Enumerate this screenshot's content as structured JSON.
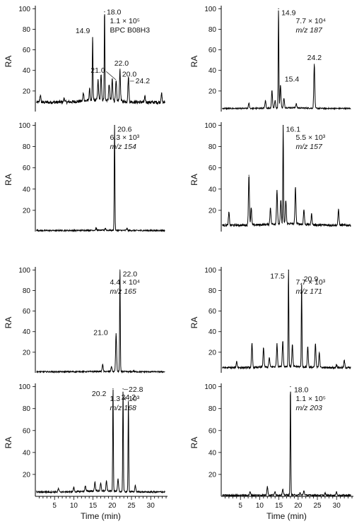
{
  "chart_data": [
    {
      "type": "line",
      "panel": "left-1",
      "annotation": {
        "line1": "1.1 × 10⁵",
        "line2": "BPC B08H3"
      },
      "ylabel": "RA",
      "xlabel": "",
      "ylim": [
        0,
        100
      ],
      "yticks": [
        20,
        40,
        60,
        80,
        100
      ],
      "xlim": [
        0,
        34
      ],
      "baseline": 9,
      "peaks": [
        {
          "x": 1.3,
          "y": 16
        },
        {
          "x": 7.5,
          "y": 13
        },
        {
          "x": 12.5,
          "y": 17
        },
        {
          "x": 14.1,
          "y": 20
        },
        {
          "x": 14.9,
          "y": 72,
          "label": "14.9"
        },
        {
          "x": 16.3,
          "y": 28
        },
        {
          "x": 17.1,
          "y": 35
        },
        {
          "x": 18.0,
          "y": 97,
          "label": "18.0"
        },
        {
          "x": 19.2,
          "y": 25
        },
        {
          "x": 20.0,
          "y": 30,
          "label": "20.0"
        },
        {
          "x": 21.0,
          "y": 28,
          "label": "21.0"
        },
        {
          "x": 22.0,
          "y": 39,
          "label": "22.0"
        },
        {
          "x": 24.2,
          "y": 33,
          "label": "24.2"
        },
        {
          "x": 28.5,
          "y": 14
        },
        {
          "x": 32.8,
          "y": 18
        }
      ]
    },
    {
      "type": "line",
      "panel": "right-1",
      "annotation": {
        "line1": "7.7 × 10⁴",
        "line2": "m/z 187"
      },
      "ylabel": "RA",
      "xlabel": "",
      "ylim": [
        0,
        100
      ],
      "yticks": [
        20,
        40,
        60,
        80,
        100
      ],
      "xlim": [
        0,
        34
      ],
      "baseline": 3,
      "peaks": [
        {
          "x": 7.2,
          "y": 8
        },
        {
          "x": 11.5,
          "y": 10
        },
        {
          "x": 13.2,
          "y": 20
        },
        {
          "x": 14.0,
          "y": 10
        },
        {
          "x": 14.9,
          "y": 100,
          "label": "14.9"
        },
        {
          "x": 15.4,
          "y": 25,
          "label": "15.4"
        },
        {
          "x": 16.3,
          "y": 12
        },
        {
          "x": 19.5,
          "y": 7
        },
        {
          "x": 24.2,
          "y": 46,
          "label": "24.2"
        }
      ]
    },
    {
      "type": "line",
      "panel": "left-2",
      "annotation": {
        "line1": "6.3 × 10³",
        "line2": "m/z 154"
      },
      "ylabel": "RA",
      "xlabel": "",
      "ylim": [
        0,
        100
      ],
      "yticks": [
        20,
        40,
        60,
        80,
        100
      ],
      "xlim": [
        0,
        34
      ],
      "baseline": 1,
      "peaks": [
        {
          "x": 15.8,
          "y": 3
        },
        {
          "x": 18.2,
          "y": 3
        },
        {
          "x": 20.6,
          "y": 100,
          "label": "20.6"
        },
        {
          "x": 23.8,
          "y": 3
        }
      ]
    },
    {
      "type": "line",
      "panel": "right-2",
      "annotation": {
        "line1": "5.5 × 10³",
        "line2": "m/z 157"
      },
      "ylabel": "RA",
      "xlabel": "",
      "ylim": [
        0,
        100
      ],
      "yticks": [
        20,
        40,
        60,
        80,
        100
      ],
      "xlim": [
        0,
        34
      ],
      "baseline": 6,
      "peaks": [
        {
          "x": 2.0,
          "y": 18
        },
        {
          "x": 7.2,
          "y": 53
        },
        {
          "x": 7.8,
          "y": 22
        },
        {
          "x": 12.8,
          "y": 22
        },
        {
          "x": 14.5,
          "y": 38
        },
        {
          "x": 15.5,
          "y": 28
        },
        {
          "x": 16.1,
          "y": 100,
          "label": "16.1"
        },
        {
          "x": 16.8,
          "y": 28
        },
        {
          "x": 19.3,
          "y": 40
        },
        {
          "x": 21.5,
          "y": 20
        },
        {
          "x": 23.5,
          "y": 16
        },
        {
          "x": 30.5,
          "y": 21
        }
      ]
    },
    {
      "type": "line",
      "panel": "left-3",
      "annotation": {
        "line1": "4.4 × 10⁴",
        "line2": "m/z 165"
      },
      "ylabel": "RA",
      "xlabel": "",
      "ylim": [
        0,
        100
      ],
      "yticks": [
        20,
        40,
        60,
        80,
        100
      ],
      "xlim": [
        0,
        34
      ],
      "baseline": 1,
      "peaks": [
        {
          "x": 17.5,
          "y": 8
        },
        {
          "x": 19.8,
          "y": 6
        },
        {
          "x": 21.0,
          "y": 38,
          "label": "21.0"
        },
        {
          "x": 22.0,
          "y": 100,
          "label": "22.0"
        },
        {
          "x": 25.5,
          "y": 2
        }
      ]
    },
    {
      "type": "line",
      "panel": "right-3",
      "annotation": {
        "line1": "7.7 × 10³",
        "line2": "m/z 171"
      },
      "ylabel": "RA",
      "xlabel": "",
      "ylim": [
        0,
        100
      ],
      "yticks": [
        20,
        40,
        60,
        80,
        100
      ],
      "xlim": [
        0,
        34
      ],
      "baseline": 5,
      "peaks": [
        {
          "x": 4.0,
          "y": 11
        },
        {
          "x": 8.0,
          "y": 28
        },
        {
          "x": 11.0,
          "y": 24
        },
        {
          "x": 12.5,
          "y": 14
        },
        {
          "x": 14.5,
          "y": 27
        },
        {
          "x": 16.0,
          "y": 30
        },
        {
          "x": 17.5,
          "y": 100,
          "label": "17.5"
        },
        {
          "x": 18.5,
          "y": 26
        },
        {
          "x": 20.9,
          "y": 87,
          "label": "20.9"
        },
        {
          "x": 22.5,
          "y": 25
        },
        {
          "x": 24.5,
          "y": 28
        },
        {
          "x": 25.5,
          "y": 20
        },
        {
          "x": 30.0,
          "y": 8
        },
        {
          "x": 32.0,
          "y": 12
        }
      ]
    },
    {
      "type": "line",
      "panel": "left-4",
      "annotation": {
        "line1": "1.3 × 10³",
        "line2": "m/z 168"
      },
      "ylabel": "RA",
      "xlabel": "Time (min)",
      "ylim": [
        0,
        100
      ],
      "yticks": [
        20,
        40,
        60,
        80,
        100
      ],
      "xlim": [
        0,
        34
      ],
      "xticks": [
        5,
        10,
        15,
        20,
        25,
        30
      ],
      "baseline": 4,
      "peaks": [
        {
          "x": 6.0,
          "y": 7
        },
        {
          "x": 10.0,
          "y": 8
        },
        {
          "x": 13.0,
          "y": 9
        },
        {
          "x": 15.5,
          "y": 12
        },
        {
          "x": 17.0,
          "y": 11
        },
        {
          "x": 18.5,
          "y": 13
        },
        {
          "x": 20.2,
          "y": 98,
          "label": "20.2"
        },
        {
          "x": 21.5,
          "y": 15
        },
        {
          "x": 22.8,
          "y": 98,
          "label": "22.8"
        },
        {
          "x": 24.2,
          "y": 87,
          "label": "24.2"
        },
        {
          "x": 26.0,
          "y": 10
        }
      ]
    },
    {
      "type": "line",
      "panel": "right-4",
      "annotation": {
        "line1": "1.1 × 10⁵",
        "line2": "m/z 203"
      },
      "ylabel": "RA",
      "xlabel": "Time (min)",
      "ylim": [
        0,
        100
      ],
      "yticks": [
        20,
        40,
        60,
        80,
        100
      ],
      "xlim": [
        0,
        34
      ],
      "xticks": [
        5,
        10,
        15,
        20,
        25,
        30
      ],
      "baseline": 1,
      "peaks": [
        {
          "x": 7.5,
          "y": 4
        },
        {
          "x": 12.0,
          "y": 9
        },
        {
          "x": 14.0,
          "y": 4
        },
        {
          "x": 16.0,
          "y": 6
        },
        {
          "x": 18.0,
          "y": 100,
          "label": "18.0"
        },
        {
          "x": 20.5,
          "y": 3
        },
        {
          "x": 21.5,
          "y": 5
        },
        {
          "x": 27.0,
          "y": 3
        },
        {
          "x": 30.0,
          "y": 4
        }
      ]
    }
  ]
}
